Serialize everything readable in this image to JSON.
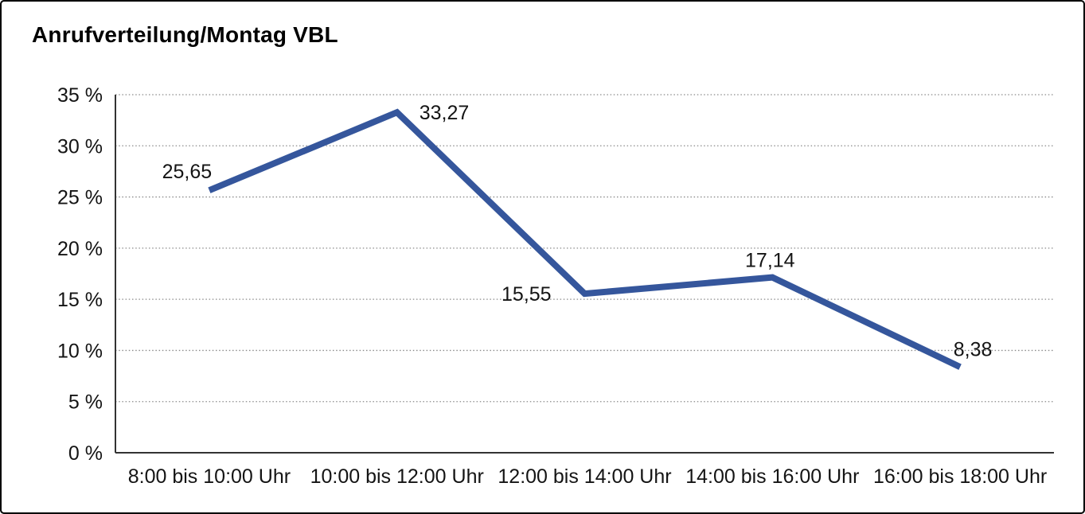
{
  "window": {
    "background": "#ffffff",
    "border_color": "#000000"
  },
  "chart_data": {
    "type": "line",
    "title": "Anrufverteilung/Montag VBL",
    "categories": [
      "8:00 bis 10:00 Uhr",
      "10:00 bis 12:00 Uhr",
      "12:00 bis 14:00 Uhr",
      "14:00 bis 16:00 Uhr",
      "16:00 bis 18:00 Uhr"
    ],
    "values": [
      25.65,
      33.27,
      15.55,
      17.14,
      8.38
    ],
    "value_labels": [
      "25,65",
      "33,27",
      "15,55",
      "17,14",
      "8,38"
    ],
    "label_positions": [
      "above-left",
      "right",
      "left",
      "above",
      "above-right"
    ],
    "ytick_values": [
      0,
      5,
      10,
      15,
      20,
      25,
      30,
      35
    ],
    "yticks": [
      "0 %",
      "5 %",
      "10 %",
      "15 %",
      "20 %",
      "25 %",
      "30 %",
      "35 %"
    ],
    "ylim": [
      0,
      35
    ],
    "ytick_step": 5,
    "xlabel": "",
    "ylabel": "",
    "legend": "none",
    "grid": "dotted-horizontal",
    "line_color": "#35569C",
    "decimal_separator": ","
  }
}
